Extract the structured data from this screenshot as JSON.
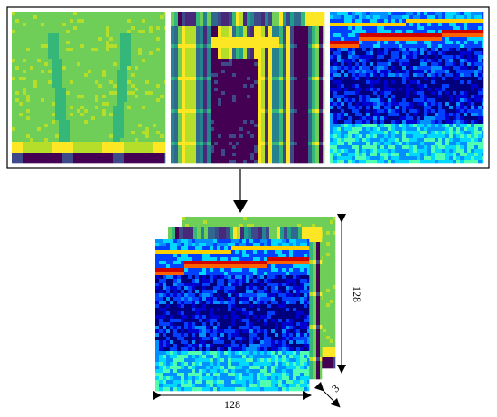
{
  "stack": {
    "height_label": "128",
    "width_label": "128",
    "depth_label": "3"
  }
}
